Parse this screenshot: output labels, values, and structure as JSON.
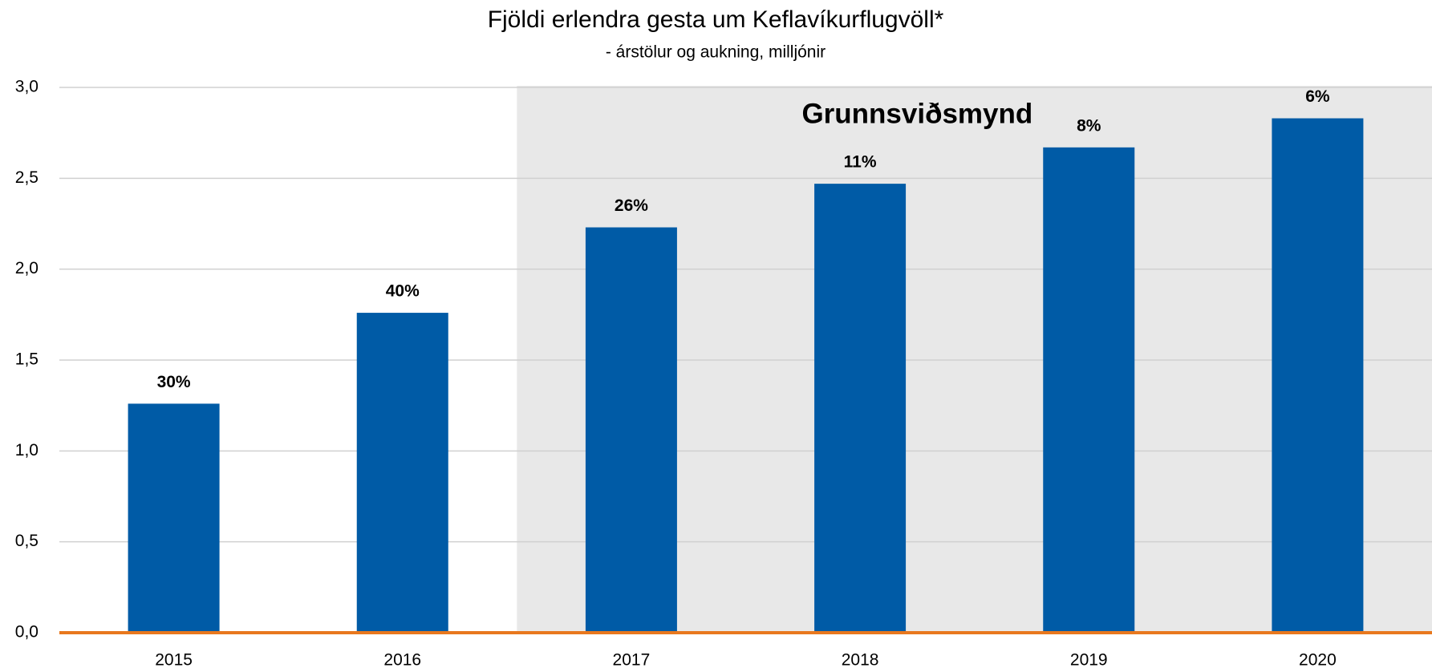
{
  "chart_data": {
    "type": "bar",
    "title": "Fjöldi erlendra gesta um Keflavíkurflugvöll*",
    "subtitle": "- árstölur og aukning, milljónir",
    "categories": [
      "2015",
      "2016",
      "2017",
      "2018",
      "2019",
      "2020"
    ],
    "values": [
      1.26,
      1.76,
      2.23,
      2.47,
      2.67,
      2.83
    ],
    "annotations": [
      "30%",
      "40%",
      "26%",
      "11%",
      "8%",
      "6%"
    ],
    "color": "#005ba6",
    "baseline_color": "#e8781e",
    "highlight": {
      "label": "Grunnsviðsmynd",
      "from": "2017",
      "color": "#e8e8e8"
    },
    "ylim": [
      0,
      3
    ],
    "yticks": [
      {
        "value": 0,
        "label": "0,0"
      },
      {
        "value": 0.5,
        "label": "0,5"
      },
      {
        "value": 1,
        "label": "1,0"
      },
      {
        "value": 1.5,
        "label": "1,5"
      },
      {
        "value": 2,
        "label": "2,0"
      },
      {
        "value": 2.5,
        "label": "2,5"
      },
      {
        "value": 3,
        "label": "3,0"
      }
    ],
    "grid": true
  }
}
